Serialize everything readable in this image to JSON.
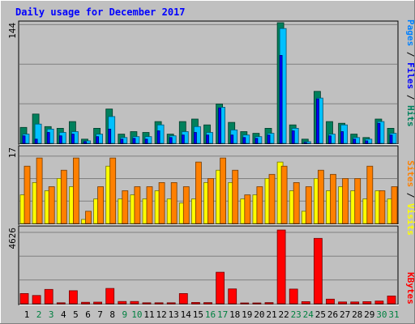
{
  "chart_data": [
    {
      "type": "bar",
      "title": "Daily usage for December 2017",
      "max_label": "144",
      "ylim": [
        0,
        144
      ],
      "categories": [
        "1",
        "2",
        "3",
        "4",
        "5",
        "6",
        "7",
        "8",
        "9",
        "10",
        "11",
        "12",
        "13",
        "14",
        "15",
        "16",
        "17",
        "18",
        "19",
        "20",
        "21",
        "22",
        "23",
        "24",
        "25",
        "26",
        "27",
        "28",
        "29",
        "30",
        "31"
      ],
      "weekend_days": [
        "2",
        "3",
        "9",
        "10",
        "16",
        "17",
        "23",
        "24",
        "30",
        "31"
      ],
      "series": [
        {
          "name": "Hits",
          "color": "#00805c",
          "values": [
            19,
            35,
            20,
            18,
            26,
            5,
            18,
            41,
            11,
            14,
            13,
            26,
            11,
            26,
            29,
            22,
            47,
            25,
            14,
            12,
            18,
            144,
            22,
            5,
            62,
            26,
            24,
            11,
            7,
            29,
            18
          ]
        },
        {
          "name": "Files",
          "color": "#00c0ff",
          "values": [
            11,
            23,
            17,
            13,
            14,
            3,
            11,
            32,
            7,
            8,
            8,
            22,
            9,
            14,
            20,
            13,
            43,
            16,
            10,
            8,
            12,
            137,
            18,
            2,
            54,
            11,
            22,
            7,
            5,
            26,
            12
          ]
        },
        {
          "name": "Pages",
          "color": "#0000ff",
          "values": [
            9,
            5,
            13,
            9,
            11,
            2,
            8,
            17,
            5,
            6,
            5,
            15,
            7,
            10,
            13,
            10,
            42,
            10,
            7,
            6,
            10,
            105,
            15,
            1,
            53,
            9,
            14,
            5,
            3,
            24,
            10
          ]
        }
      ],
      "ylabel_parts": [
        {
          "text": "Pages",
          "color": "#0080ff"
        },
        {
          "text": " / ",
          "color": "#000000"
        },
        {
          "text": "Files",
          "color": "#0000ff"
        },
        {
          "text": " / ",
          "color": "#000000"
        },
        {
          "text": "Hits",
          "color": "#00805c"
        }
      ]
    },
    {
      "type": "bar",
      "max_label": "17",
      "ylim": [
        0,
        17
      ],
      "categories": [
        "1",
        "2",
        "3",
        "4",
        "5",
        "6",
        "7",
        "8",
        "9",
        "10",
        "11",
        "12",
        "13",
        "14",
        "15",
        "16",
        "17",
        "18",
        "19",
        "20",
        "21",
        "22",
        "23",
        "24",
        "25",
        "26",
        "27",
        "28",
        "29",
        "30",
        "31"
      ],
      "series": [
        {
          "name": "Visits",
          "color": "#ffff00",
          "values": [
            7,
            10,
            8,
            11,
            9,
            1,
            6,
            14,
            6,
            7,
            6,
            8,
            6,
            5,
            6,
            10,
            13,
            10,
            6,
            7,
            11,
            15,
            8,
            3,
            11,
            8,
            9,
            8,
            6,
            8,
            6
          ]
        },
        {
          "name": "Sites",
          "color": "#ff8000",
          "values": [
            14,
            16,
            9,
            13,
            16,
            3,
            9,
            16,
            8,
            9,
            9,
            10,
            10,
            9,
            15,
            11,
            16,
            13,
            7,
            9,
            12,
            14,
            10,
            9,
            13,
            12,
            11,
            11,
            14,
            8,
            9
          ]
        }
      ],
      "ylabel_parts": [
        {
          "text": "Sites",
          "color": "#ff8000"
        },
        {
          "text": " / ",
          "color": "#000000"
        },
        {
          "text": "Visits",
          "color": "#ffff00"
        }
      ]
    },
    {
      "type": "bar",
      "max_label": "4626",
      "ylim": [
        0,
        4626
      ],
      "categories": [
        "1",
        "2",
        "3",
        "4",
        "5",
        "6",
        "7",
        "8",
        "9",
        "10",
        "11",
        "12",
        "13",
        "14",
        "15",
        "16",
        "17",
        "18",
        "19",
        "20",
        "21",
        "22",
        "23",
        "24",
        "25",
        "26",
        "27",
        "28",
        "29",
        "30",
        "31"
      ],
      "series": [
        {
          "name": "KBytes",
          "color": "#ff0000",
          "values": [
            640,
            520,
            900,
            60,
            820,
            90,
            100,
            960,
            140,
            140,
            60,
            60,
            60,
            640,
            80,
            70,
            1980,
            930,
            40,
            40,
            70,
            4626,
            920,
            130,
            4100,
            290,
            110,
            110,
            130,
            170,
            490
          ]
        }
      ],
      "ylabel_parts": [
        {
          "text": "KBytes",
          "color": "#ff0000"
        }
      ]
    }
  ]
}
